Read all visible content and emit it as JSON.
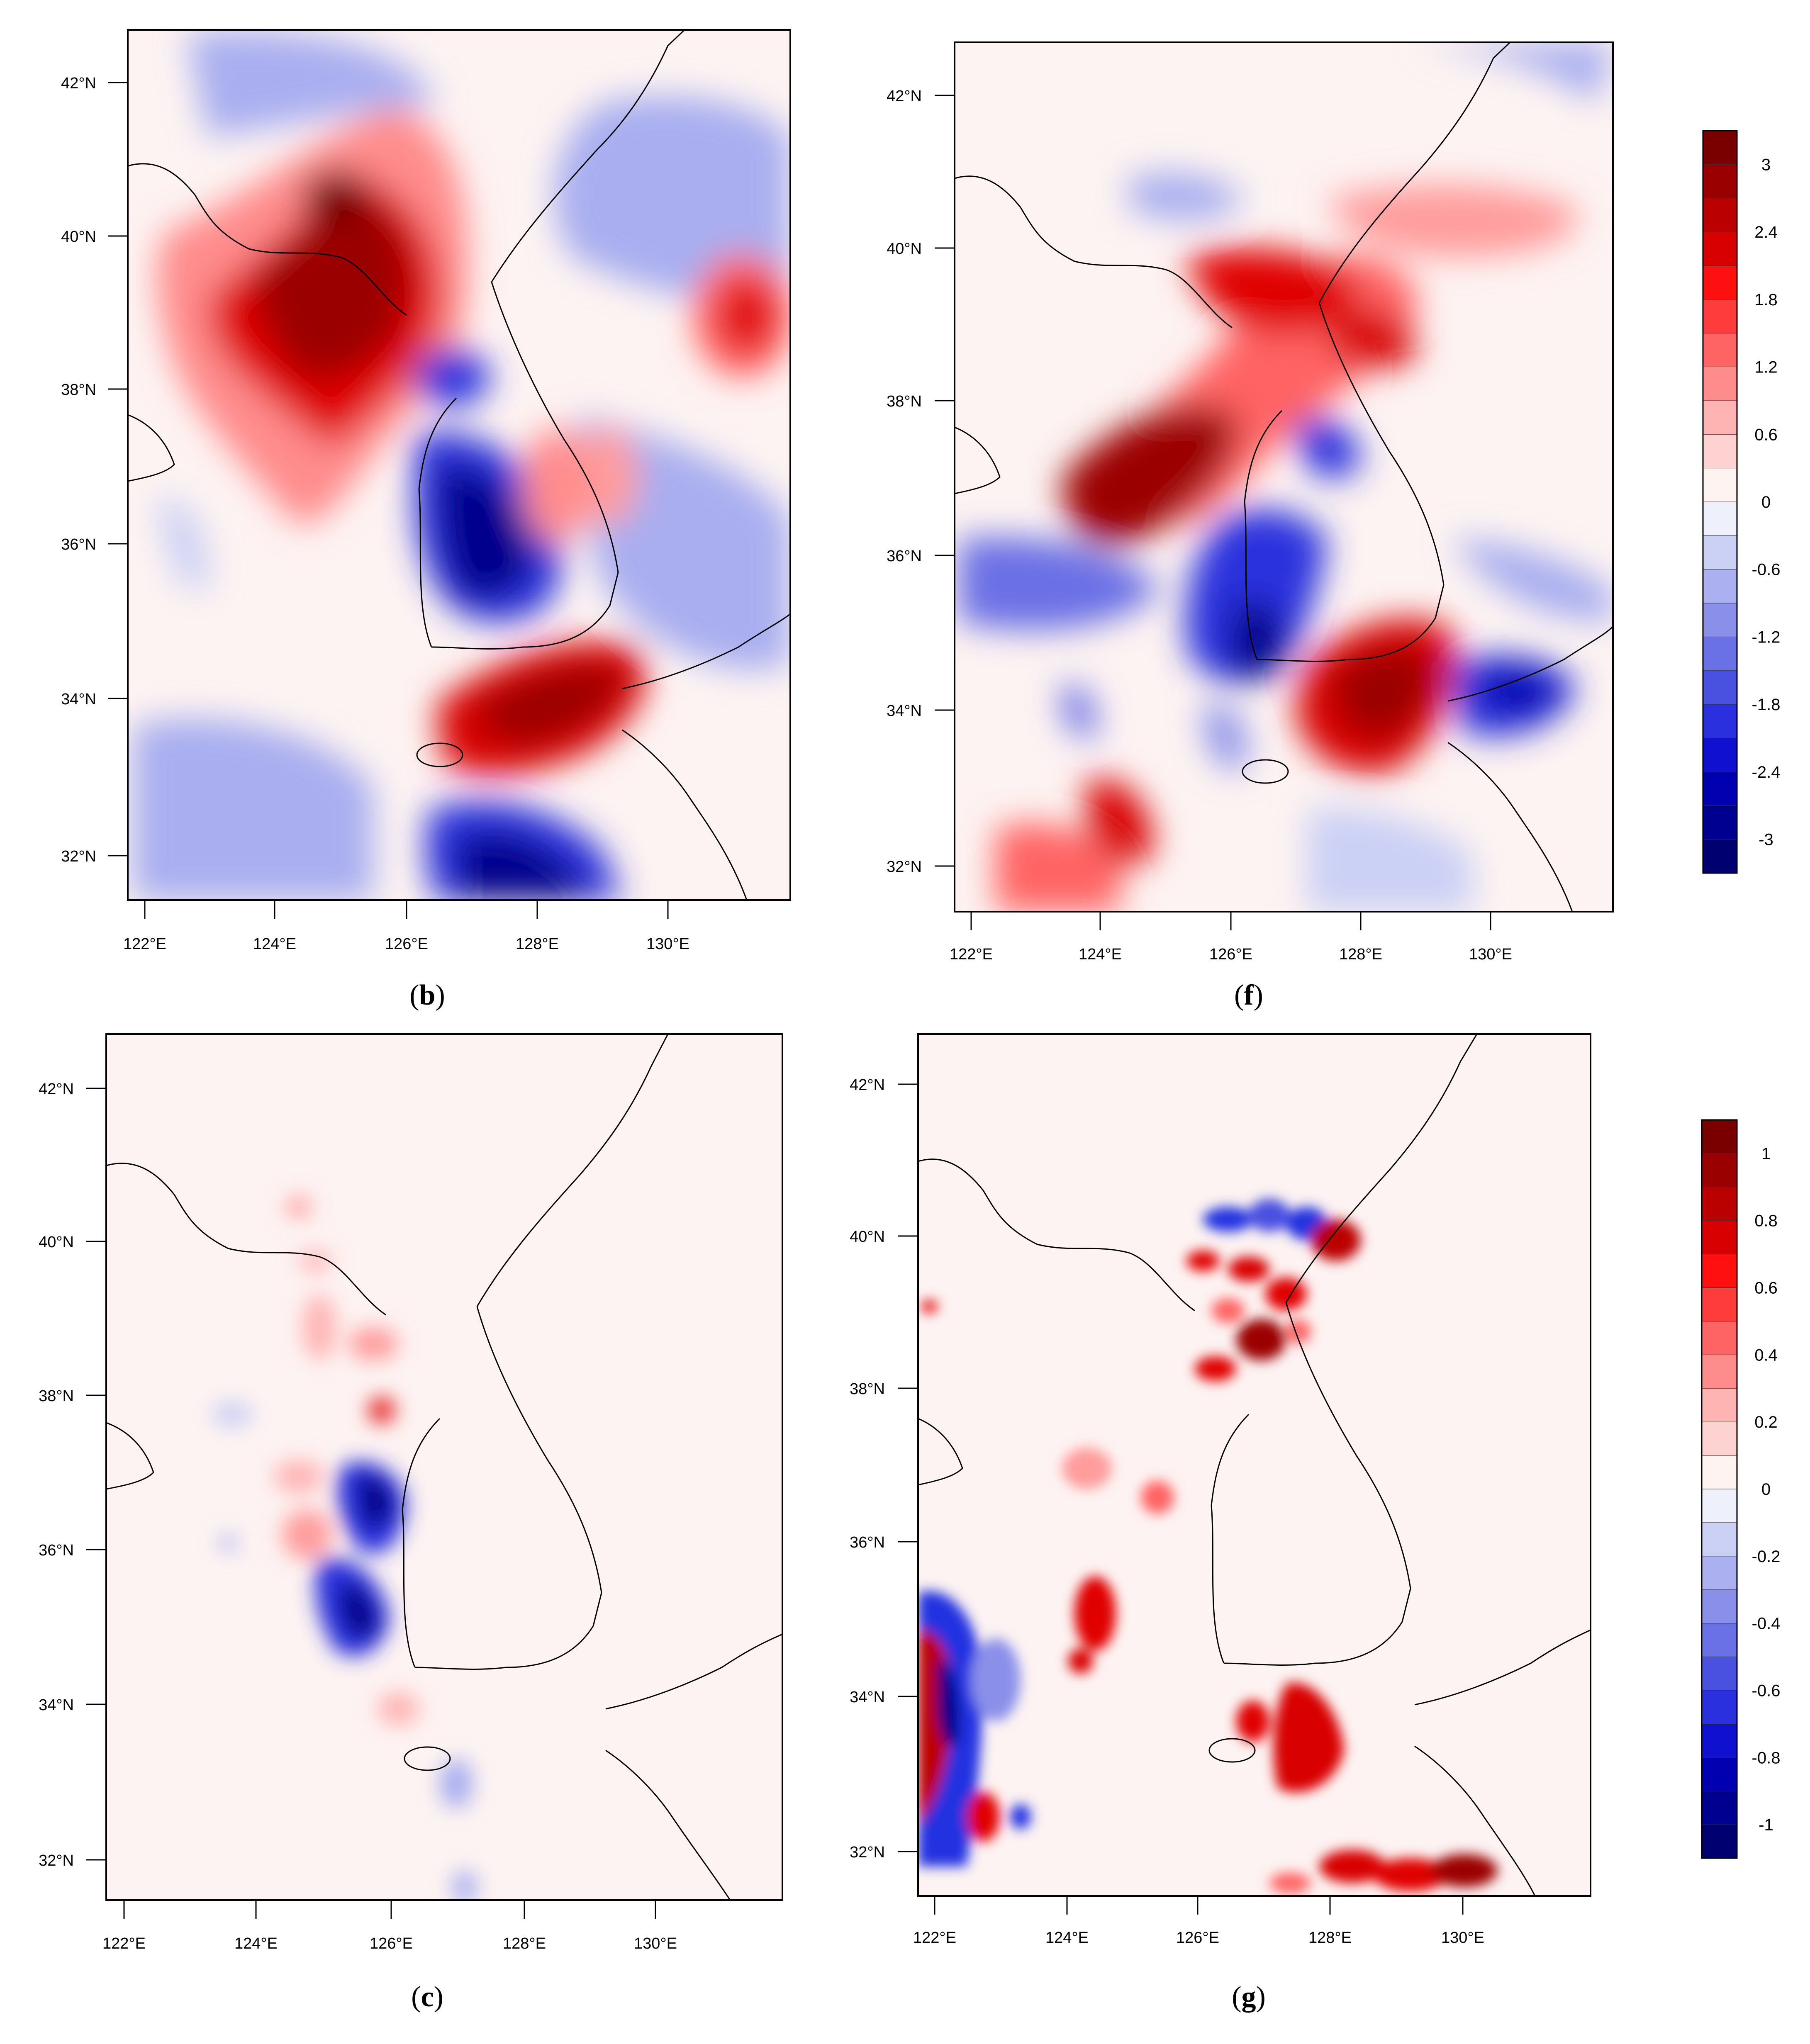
{
  "figure": {
    "panels": [
      {
        "id": "b",
        "label_open": "(",
        "label_letter": "b",
        "label_close": ")",
        "latitude_ticks": [
          "42°N",
          "40°N",
          "38°N",
          "36°N",
          "34°N",
          "32°N"
        ],
        "longitude_ticks": [
          "122°E",
          "124°E",
          "126°E",
          "128°E",
          "130°E"
        ]
      },
      {
        "id": "f",
        "label_open": "(",
        "label_letter": "f",
        "label_close": ")",
        "latitude_ticks": [
          "42°N",
          "40°N",
          "38°N",
          "36°N",
          "34°N",
          "32°N"
        ],
        "longitude_ticks": [
          "122°E",
          "124°E",
          "126°E",
          "128°E",
          "130°E"
        ]
      },
      {
        "id": "c",
        "label_open": "(",
        "label_letter": "c",
        "label_close": ")",
        "latitude_ticks": [
          "42°N",
          "40°N",
          "38°N",
          "36°N",
          "34°N",
          "32°N"
        ],
        "longitude_ticks": [
          "122°E",
          "124°E",
          "126°E",
          "128°E",
          "130°E"
        ]
      },
      {
        "id": "g",
        "label_open": "(",
        "label_letter": "g",
        "label_close": ")",
        "latitude_ticks": [
          "42°N",
          "40°N",
          "38°N",
          "36°N",
          "34°N",
          "32°N"
        ],
        "longitude_ticks": [
          "122°E",
          "124°E",
          "126°E",
          "128°E",
          "130°E"
        ]
      }
    ],
    "colorbars": [
      {
        "id": "top",
        "applies_to": [
          "b",
          "f"
        ],
        "tick_labels": [
          "3",
          "2.4",
          "1.8",
          "1.2",
          "0.6",
          "0",
          "-0.6",
          "-1.2",
          "-1.8",
          "-2.4",
          "-3"
        ],
        "colors": [
          "#7a0000",
          "#9b0000",
          "#bb0000",
          "#d80000",
          "#ff1010",
          "#ff3c3c",
          "#ff6464",
          "#ff8c8c",
          "#ffb4b4",
          "#ffd2d2",
          "#fff3f2",
          "#eef0fc",
          "#cbd0f5",
          "#aab0f0",
          "#8a90ea",
          "#6a70e5",
          "#4a50e0",
          "#2a30dd",
          "#1010d0",
          "#0000b0",
          "#000090",
          "#000070"
        ]
      },
      {
        "id": "bottom",
        "applies_to": [
          "c",
          "g"
        ],
        "tick_labels": [
          "1",
          "0.8",
          "0.6",
          "0.4",
          "0.2",
          "0",
          "-0.2",
          "-0.4",
          "-0.6",
          "-0.8",
          "-1"
        ],
        "colors": [
          "#7a0000",
          "#9b0000",
          "#bb0000",
          "#d80000",
          "#ff1010",
          "#ff3c3c",
          "#ff6464",
          "#ff8c8c",
          "#ffb4b4",
          "#ffd2d2",
          "#fff3f2",
          "#eef0fc",
          "#cbd0f5",
          "#aab0f0",
          "#8a90ea",
          "#6a70e5",
          "#4a50e0",
          "#2a30dd",
          "#1010d0",
          "#0000b0",
          "#000090",
          "#000070"
        ]
      }
    ],
    "palette": {
      "dark_red": "#8b0000",
      "red": "#e00000",
      "light_red": "#ff9c9c",
      "pale_red": "#fde8e8",
      "dark_blue": "#00008b",
      "blue": "#2030e0",
      "light_blue": "#a8aef0",
      "pale_blue": "#e6e8fa",
      "background": "#fdf3f2",
      "coast": "#000000"
    }
  }
}
